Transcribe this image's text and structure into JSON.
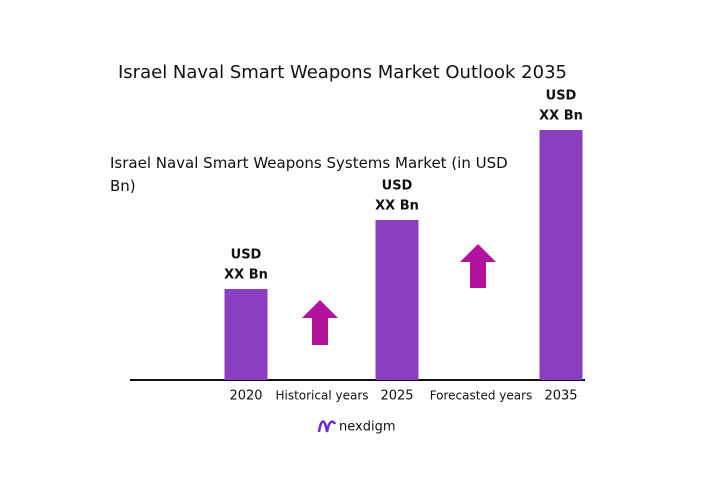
{
  "title": "Israel Naval Smart Weapons Market Outlook 2035",
  "chart_data": {
    "type": "bar",
    "subtitle": "Israel Naval Smart Weapons Systems Market (in USD Bn)",
    "categories": [
      "2020",
      "2025",
      "2035"
    ],
    "values": [
      91,
      160,
      250
    ],
    "value_labels": [
      [
        "USD",
        "XX Bn"
      ],
      [
        "USD",
        "XX Bn"
      ],
      [
        "USD",
        "XX Bn"
      ]
    ],
    "color": "#8a3fc0",
    "annotations": [
      "Historical years",
      "Forecasted years"
    ]
  },
  "logo": "nexdigm"
}
